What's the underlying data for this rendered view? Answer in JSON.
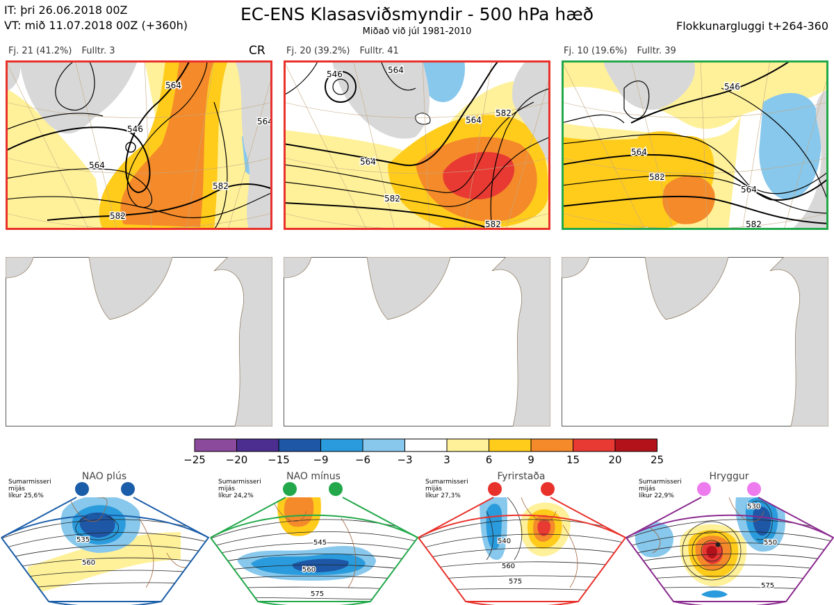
{
  "header": {
    "it_line": "IT: þri 26.06.2018 00Z",
    "vt_line": "VT: mið 11.07.2018 00Z  (+360h)",
    "title": "EC-ENS Klasasviðsmyndir - 500 hPa hæð",
    "subtitle": "Miðað við júl 1981-2010",
    "window": "Flokkunargluggi t+264-360"
  },
  "panels": [
    {
      "count": "Fj. 21 (41.2%)",
      "rep": "Fulltr. 3",
      "border": "#e8312a",
      "tag": "CR",
      "contours": [
        "546",
        "564",
        "564",
        "582",
        "582",
        "564"
      ]
    },
    {
      "count": "Fj. 20 (39.2%)",
      "rep": "Fulltr. 41",
      "border": "#e8312a",
      "contours": [
        "546",
        "564",
        "564",
        "582",
        "582",
        "582",
        "564"
      ]
    },
    {
      "count": "Fj. 10 (19.6%)",
      "rep": "Fulltr. 39",
      "border": "#22a84a",
      "contours": [
        "546",
        "564",
        "582",
        "564",
        "582"
      ]
    }
  ],
  "colorbar": {
    "ticks": [
      "−25",
      "−20",
      "−15",
      "−9",
      "−6",
      "−3",
      "3",
      "6",
      "9",
      "15",
      "20",
      "25"
    ],
    "colors": [
      "#8b4a9c",
      "#4b2e8f",
      "#1e57a6",
      "#2a9bdc",
      "#88c8ec",
      "#ffffff",
      "#fff19a",
      "#ffcc1c",
      "#f48a2a",
      "#e83a33",
      "#b3121b"
    ]
  },
  "regimes": [
    {
      "name": "NAO plús",
      "season": "Sumarmisseri",
      "type": "mijás",
      "prob": "líkur 25,6%",
      "color": "#1a5da8",
      "labels": [
        "535",
        "560"
      ]
    },
    {
      "name": "NAO mínus",
      "season": "Sumarmisseri",
      "type": "mijás",
      "prob": "líkur 24,2%",
      "color": "#22a84a",
      "labels": [
        "545",
        "560",
        "575"
      ]
    },
    {
      "name": "Fyrirstaða",
      "season": "Sumarmisseri",
      "type": "mijás",
      "prob": "líkur 27,3%",
      "color": "#e8312a",
      "labels": [
        "540",
        "560",
        "575"
      ]
    },
    {
      "name": "Hryggur",
      "season": "Sumarmisseri",
      "type": "mijás",
      "prob": "líkur 22,9%",
      "color": "#8b2a8f",
      "dot": "#ee7bee",
      "labels": [
        "530",
        "550",
        "575"
      ]
    }
  ]
}
